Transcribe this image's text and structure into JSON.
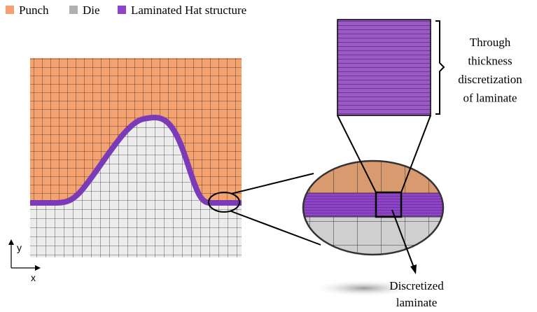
{
  "legend": [
    {
      "label": "Punch",
      "color": "#f4a070"
    },
    {
      "label": "Die",
      "color": "#b0b0b0"
    },
    {
      "label": "Laminated Hat structure",
      "color": "#8e44c9"
    }
  ],
  "annotations": {
    "through_thickness": [
      "Through",
      "thickness",
      "discretization",
      "of laminate"
    ],
    "discretized": [
      "Discretized",
      "laminate"
    ]
  },
  "axes": {
    "y": "y",
    "x": "x"
  }
}
